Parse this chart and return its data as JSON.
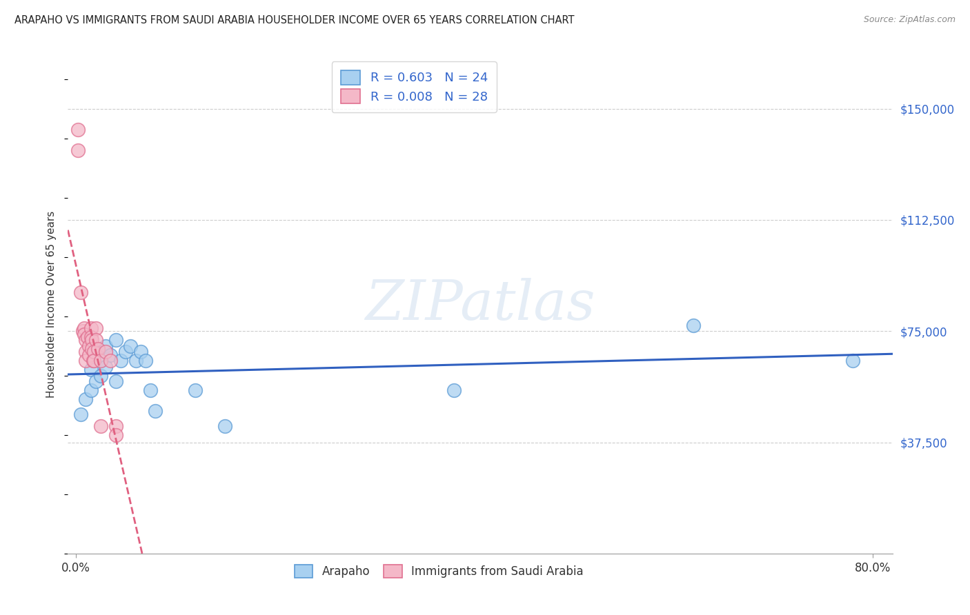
{
  "title": "ARAPAHO VS IMMIGRANTS FROM SAUDI ARABIA HOUSEHOLDER INCOME OVER 65 YEARS CORRELATION CHART",
  "source": "Source: ZipAtlas.com",
  "ylabel": "Householder Income Over 65 years",
  "y_tick_labels": [
    "$37,500",
    "$75,000",
    "$112,500",
    "$150,000"
  ],
  "y_tick_values": [
    37500,
    75000,
    112500,
    150000
  ],
  "y_min": 0,
  "y_max": 168000,
  "x_min": -0.008,
  "x_max": 0.82,
  "watermark": "ZIPatlas",
  "blue_scatter_color": "#a8d0f0",
  "blue_scatter_edge": "#5b9bd5",
  "pink_scatter_color": "#f4b8c8",
  "pink_scatter_edge": "#e07090",
  "blue_line_color": "#3060c0",
  "pink_line_color": "#e06080",
  "arapaho_x": [
    0.005,
    0.01,
    0.015,
    0.015,
    0.02,
    0.02,
    0.025,
    0.025,
    0.03,
    0.03,
    0.035,
    0.04,
    0.04,
    0.045,
    0.05,
    0.055,
    0.06,
    0.065,
    0.07,
    0.075,
    0.08,
    0.12,
    0.15,
    0.38,
    0.62,
    0.78
  ],
  "arapaho_y": [
    47000,
    52000,
    55000,
    62000,
    58000,
    68000,
    60000,
    65000,
    63000,
    70000,
    67000,
    58000,
    72000,
    65000,
    68000,
    70000,
    65000,
    68000,
    65000,
    55000,
    48000,
    55000,
    43000,
    55000,
    77000,
    65000
  ],
  "saudi_x": [
    0.002,
    0.002,
    0.005,
    0.007,
    0.008,
    0.008,
    0.01,
    0.01,
    0.01,
    0.012,
    0.013,
    0.013,
    0.015,
    0.015,
    0.016,
    0.016,
    0.017,
    0.018,
    0.018,
    0.02,
    0.02,
    0.022,
    0.025,
    0.025,
    0.03,
    0.035,
    0.04,
    0.04
  ],
  "saudi_y": [
    143000,
    136000,
    88000,
    75000,
    76000,
    74000,
    72000,
    68000,
    65000,
    73000,
    70000,
    67000,
    76000,
    73000,
    72000,
    69000,
    65000,
    68000,
    65000,
    76000,
    72000,
    69000,
    65000,
    43000,
    68000,
    65000,
    43000,
    40000
  ]
}
